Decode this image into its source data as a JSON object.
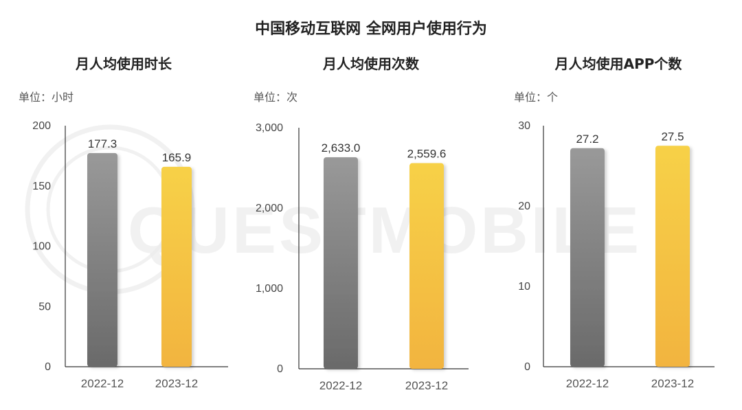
{
  "title": "中国移动互联网 全网用户使用行为",
  "watermark": {
    "text": "QUESTMOBILE",
    "color": "#dcdcdc"
  },
  "colors": {
    "gray_top": "#999999",
    "gray_bottom": "#6a6a6a",
    "yellow_top": "#f7d147",
    "yellow_bottom": "#f2b440",
    "axis": "#333333"
  },
  "panels": [
    {
      "title": "月人均使用时长",
      "unit": "单位：小时"
    },
    {
      "title": "月人均使用次数",
      "unit": "单位：次"
    },
    {
      "title": "月人均使用APP个数",
      "unit": "单位：个"
    }
  ],
  "chart_data": [
    {
      "type": "bar",
      "title": "月人均使用时长",
      "unit": "单位：小时",
      "categories": [
        "2022-12",
        "2023-12"
      ],
      "values": [
        177.3,
        165.9
      ],
      "value_labels": [
        "177.3",
        "165.9"
      ],
      "ylim": [
        0,
        200
      ],
      "yticks": [
        0,
        50,
        100,
        150,
        200
      ],
      "ytick_labels": [
        "0",
        "50",
        "100",
        "150",
        "200"
      ],
      "bar_colors": [
        "gray",
        "yellow"
      ],
      "grid": false,
      "legend": "none"
    },
    {
      "type": "bar",
      "title": "月人均使用次数",
      "unit": "单位：次",
      "categories": [
        "2022-12",
        "2023-12"
      ],
      "values": [
        2633.0,
        2559.6
      ],
      "value_labels": [
        "2,633.0",
        "2,559.6"
      ],
      "ylim": [
        0,
        3000
      ],
      "yticks": [
        0,
        1000,
        2000,
        3000
      ],
      "ytick_labels": [
        "0",
        "1,000",
        "2,000",
        "3,000"
      ],
      "bar_colors": [
        "gray",
        "yellow"
      ],
      "grid": false,
      "legend": "none"
    },
    {
      "type": "bar",
      "title": "月人均使用APP个数",
      "unit": "单位：个",
      "categories": [
        "2022-12",
        "2023-12"
      ],
      "values": [
        27.2,
        27.5
      ],
      "value_labels": [
        "27.2",
        "27.5"
      ],
      "ylim": [
        0,
        30
      ],
      "yticks": [
        0,
        10,
        20,
        30
      ],
      "ytick_labels": [
        "0",
        "10",
        "20",
        "30"
      ],
      "bar_colors": [
        "gray",
        "yellow"
      ],
      "grid": false,
      "legend": "none"
    }
  ]
}
